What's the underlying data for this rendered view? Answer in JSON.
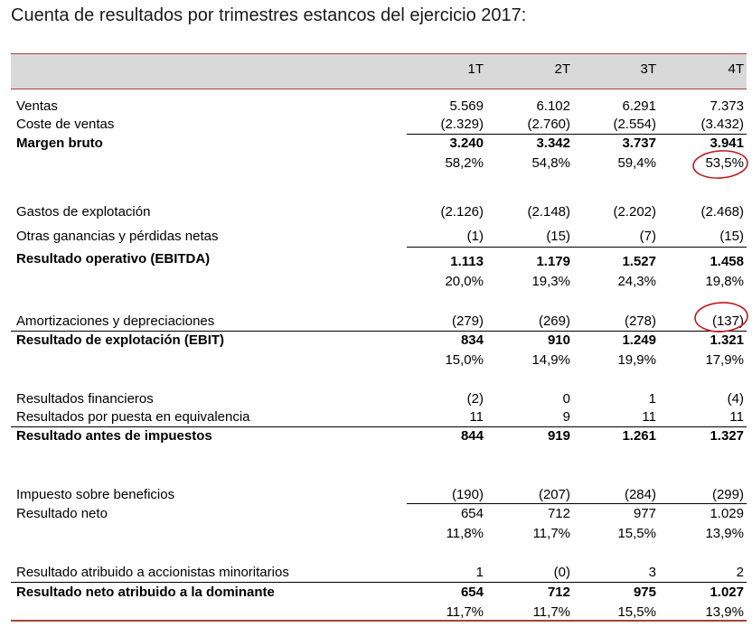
{
  "title": "Cuenta de resultados por trimestres estancos del ejercicio 2017:",
  "columns": [
    "1T",
    "2T",
    "3T",
    "4T"
  ],
  "rows": [
    {
      "label": "Ventas",
      "bold": false,
      "values": [
        "5.569",
        "6.102",
        "6.291",
        "7.373"
      ]
    },
    {
      "label": "Coste de ventas",
      "bold": false,
      "values": [
        "(2.329)",
        "(2.760)",
        "(2.554)",
        "(3.432)"
      ]
    },
    {
      "label": "Margen bruto",
      "bold": true,
      "values": [
        "3.240",
        "3.342",
        "3.737",
        "3.941"
      ]
    },
    {
      "label": "",
      "bold": false,
      "values": [
        "58,2%",
        "54,8%",
        "59,4%",
        "53,5%"
      ]
    },
    {
      "label": "Gastos de explotación",
      "bold": false,
      "values": [
        "(2.126)",
        "(2.148)",
        "(2.202)",
        "(2.468)"
      ]
    },
    {
      "label": "Otras ganancias y pérdidas netas",
      "bold": false,
      "values": [
        "(1)",
        "(15)",
        "(7)",
        "(15)"
      ]
    },
    {
      "label": "Resultado operativo (EBITDA)",
      "bold": true,
      "values": [
        "1.113",
        "1.179",
        "1.527",
        "1.458"
      ]
    },
    {
      "label": "",
      "bold": false,
      "values": [
        "20,0%",
        "19,3%",
        "24,3%",
        "19,8%"
      ]
    },
    {
      "label": "Amortizaciones y depreciaciones",
      "bold": false,
      "values": [
        "(279)",
        "(269)",
        "(278)",
        "(137)"
      ]
    },
    {
      "label": "Resultado de explotación  (EBIT)",
      "bold": true,
      "values": [
        "834",
        "910",
        "1.249",
        "1.321"
      ]
    },
    {
      "label": "",
      "bold": false,
      "values": [
        "15,0%",
        "14,9%",
        "19,9%",
        "17,9%"
      ]
    },
    {
      "label": "Resultados financieros",
      "bold": false,
      "values": [
        "(2)",
        "0",
        "1",
        "(4)"
      ]
    },
    {
      "label": "Resultados por puesta en equivalencia",
      "bold": false,
      "values": [
        "11",
        "9",
        "11",
        "11"
      ]
    },
    {
      "label": "Resultado antes de impuestos",
      "bold": true,
      "values": [
        "844",
        "919",
        "1.261",
        "1.327"
      ]
    },
    {
      "label": "Impuesto sobre beneficios",
      "bold": false,
      "values": [
        "(190)",
        "(207)",
        "(284)",
        "(299)"
      ]
    },
    {
      "label": "Resultado neto",
      "bold": false,
      "values": [
        "654",
        "712",
        "977",
        "1.029"
      ]
    },
    {
      "label": "",
      "bold": false,
      "values": [
        "11,8%",
        "11,7%",
        "15,5%",
        "13,9%"
      ]
    },
    {
      "label": "Resultado atribuido a accionistas minoritarios",
      "bold": false,
      "values": [
        "1",
        "(0)",
        "3",
        "2"
      ]
    },
    {
      "label": "Resultado neto atribuido a la dominante",
      "bold": true,
      "values": [
        "654",
        "712",
        "975",
        "1.027"
      ]
    },
    {
      "label": "",
      "bold": false,
      "values": [
        "11,7%",
        "11,7%",
        "15,5%",
        "13,9%"
      ]
    }
  ],
  "colors": {
    "accent": "#a6423a",
    "header_bg": "#d9d9d9",
    "highlight_circle": "#c0181f"
  }
}
